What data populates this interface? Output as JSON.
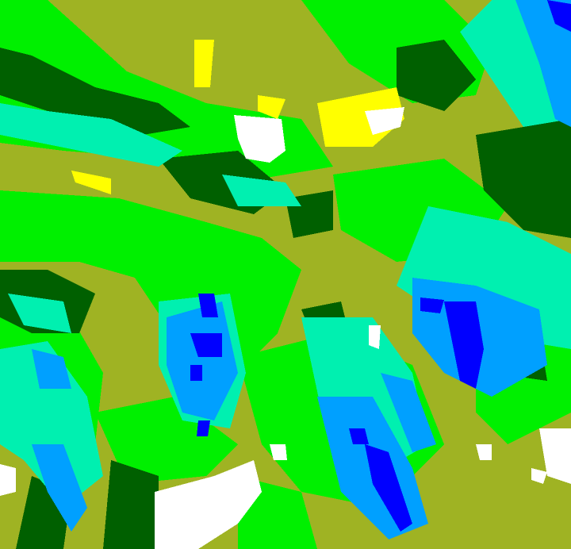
{
  "map": {
    "type": "classified-raster",
    "palette": {
      "olive": "#9fb323",
      "green": "#00f000",
      "dark_green": "#006000",
      "teal": "#00f0b0",
      "light_blue": "#00a0ff",
      "blue": "#0000ff",
      "yellow": "#ffff00",
      "white": "#ffffff"
    }
  }
}
